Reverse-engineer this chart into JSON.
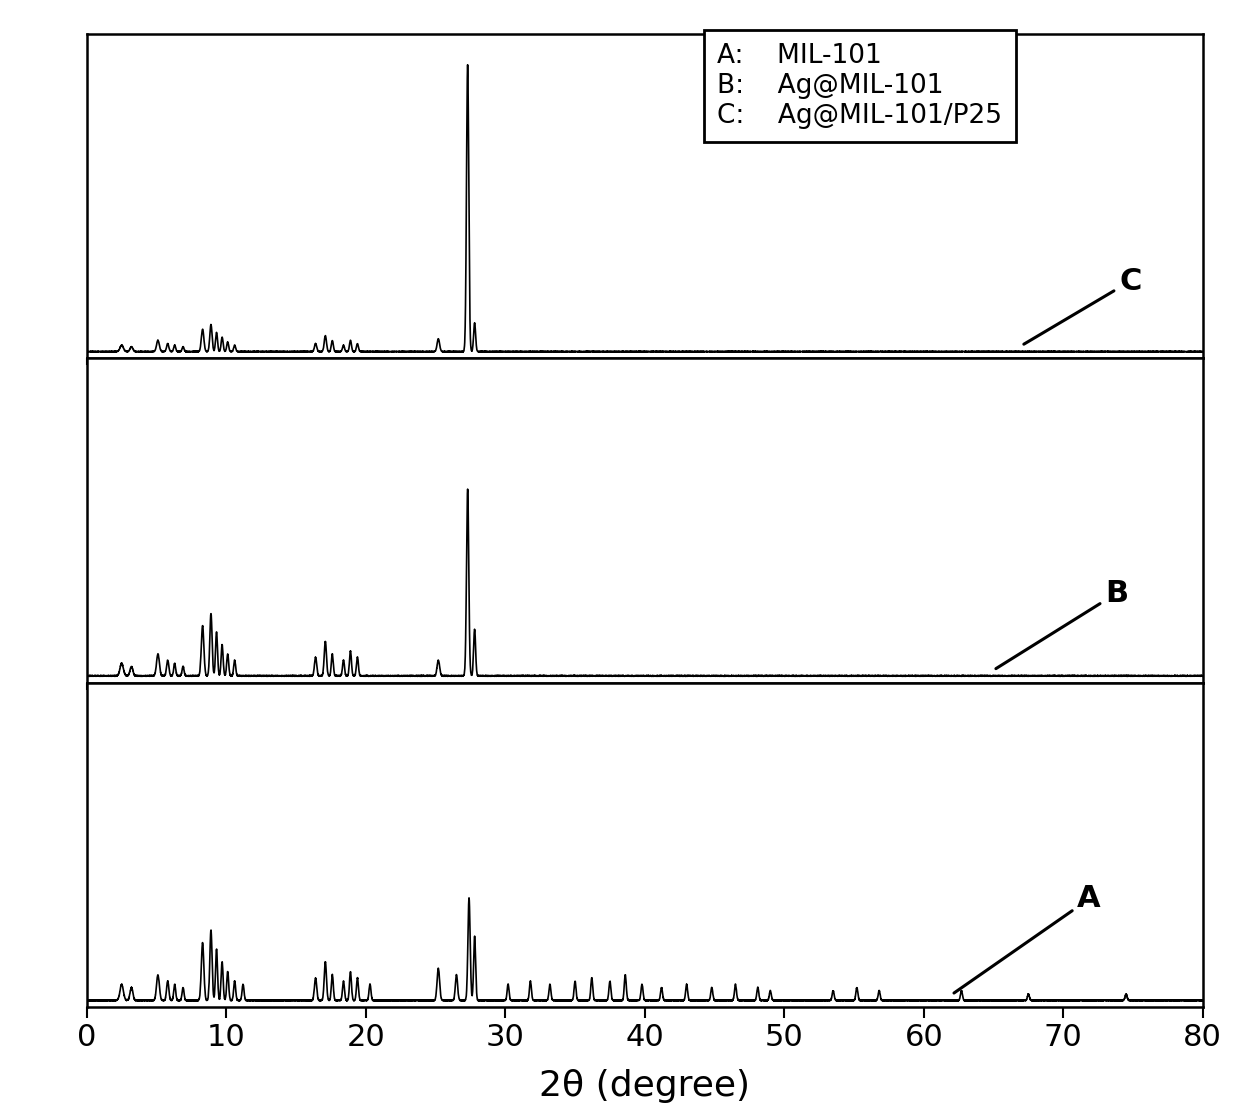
{
  "xlabel": "2θ (degree)",
  "xlim": [
    0,
    80
  ],
  "xticks": [
    0,
    10,
    20,
    30,
    40,
    50,
    60,
    70,
    80
  ],
  "background_color": "#ffffff",
  "line_color": "#000000",
  "legend_labels": [
    "A:    MIL-101",
    "B:    Ag@MIL-101",
    "C:    Ag@MIL-101/P25"
  ],
  "label_A": "A",
  "label_B": "B",
  "label_C": "C",
  "figsize": [
    12.4,
    11.19
  ],
  "dpi": 100,
  "lw": 1.2,
  "tick_fontsize": 22,
  "xlabel_fontsize": 26,
  "legend_fontsize": 19,
  "annotation_fontsize": 22
}
